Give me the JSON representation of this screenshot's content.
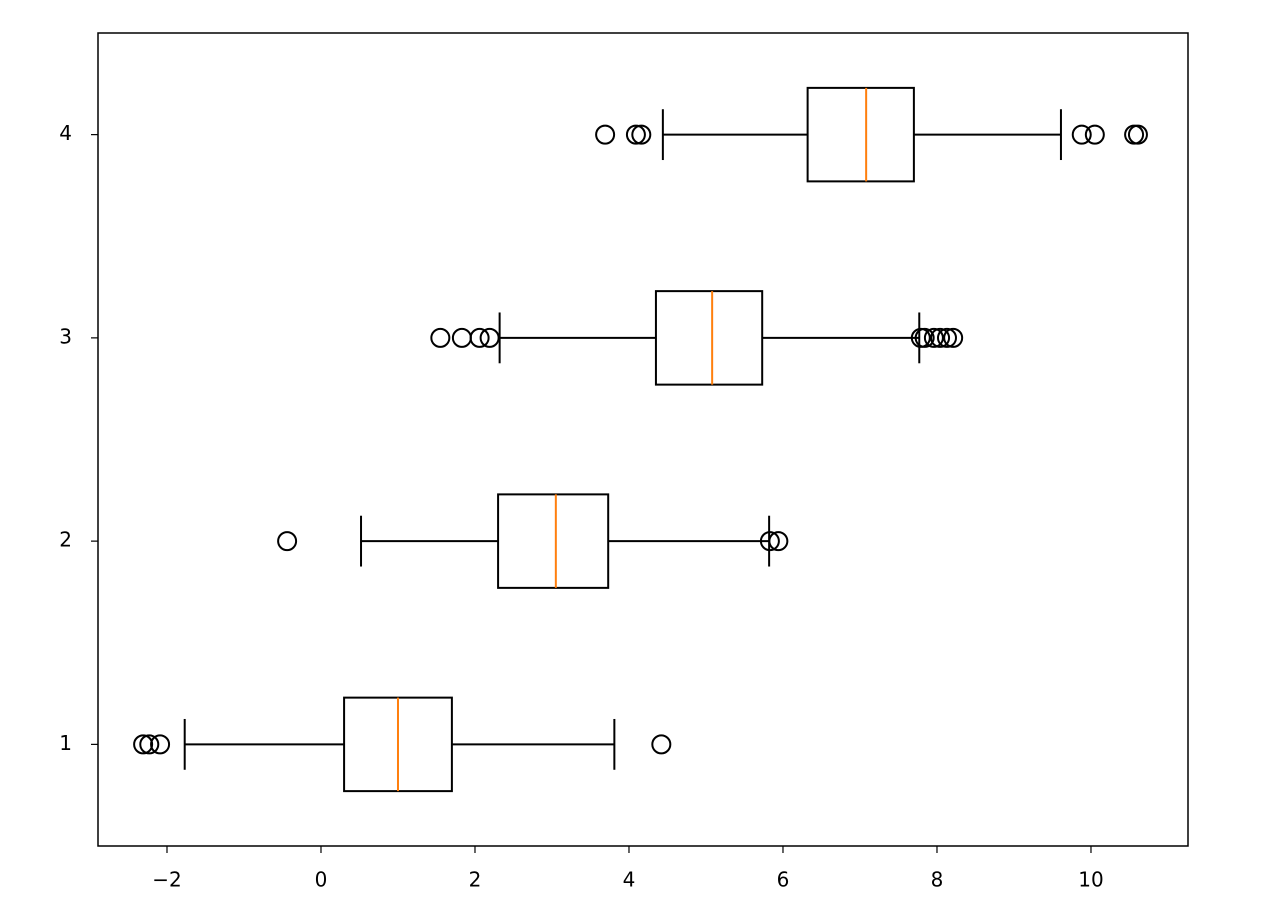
{
  "chart_data": {
    "type": "boxplot",
    "orientation": "horizontal",
    "positions": [
      1,
      2,
      3,
      4
    ],
    "boxes": [
      {
        "low": -1.77,
        "q1": 0.3,
        "median": 1.0,
        "q3": 1.7,
        "high": 3.81,
        "outliers": [
          -2.31,
          -2.23,
          -2.09,
          4.42
        ]
      },
      {
        "low": 0.52,
        "q1": 2.3,
        "median": 3.05,
        "q3": 3.73,
        "high": 5.82,
        "outliers": [
          -0.44,
          5.83,
          5.94
        ]
      },
      {
        "low": 2.32,
        "q1": 4.35,
        "median": 5.08,
        "q3": 5.73,
        "high": 7.77,
        "outliers": [
          1.55,
          1.83,
          2.06,
          2.19,
          7.79,
          7.84,
          7.96,
          8.04,
          8.13,
          8.21
        ]
      },
      {
        "low": 4.44,
        "q1": 6.32,
        "median": 7.08,
        "q3": 7.7,
        "high": 9.61,
        "outliers": [
          3.69,
          4.09,
          4.16,
          9.88,
          10.05,
          10.56,
          10.61
        ]
      }
    ],
    "box_color": "#000000",
    "median_color": "#ff7f0e",
    "xlim": [
      -2.896,
      11.26
    ],
    "xticks": [
      {
        "value": -2,
        "label": "−2"
      },
      0,
      2,
      4,
      6,
      8,
      10
    ],
    "ylim": [
      0.5,
      4.5
    ],
    "yticks": [
      1,
      2,
      3,
      4
    ],
    "grid": false
  }
}
